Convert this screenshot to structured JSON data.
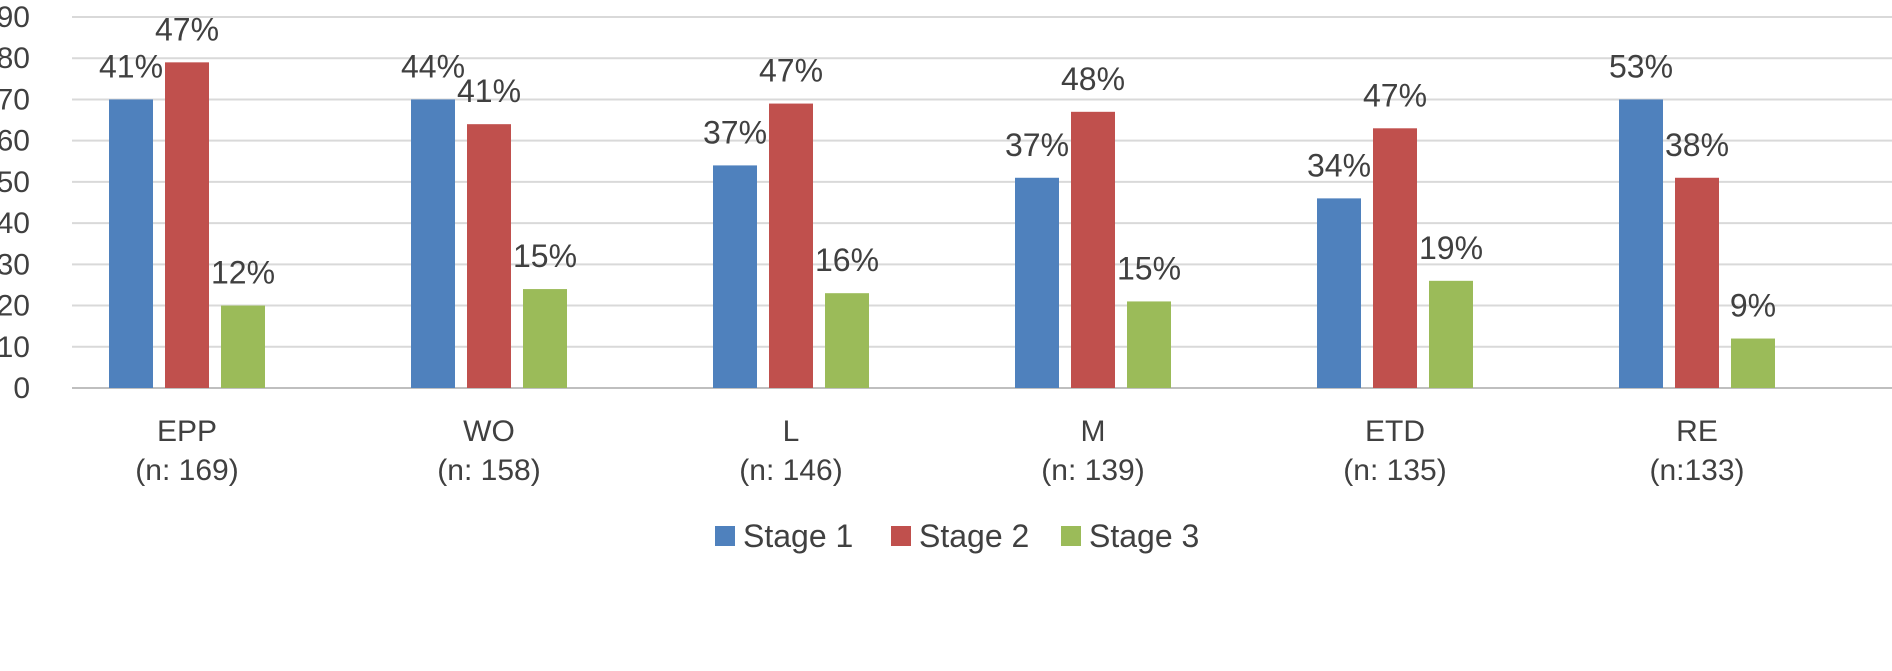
{
  "chart_data": {
    "type": "bar",
    "title": "",
    "xlabel": "",
    "ylabel": "",
    "ylim": [
      0,
      90
    ],
    "yticks": [
      0,
      10,
      20,
      30,
      40,
      50,
      60,
      70,
      80,
      90
    ],
    "grid": true,
    "legend_position": "bottom",
    "categories": [
      {
        "name": "EPP",
        "n": "(n: 169)"
      },
      {
        "name": "WO",
        "n": "(n: 158)"
      },
      {
        "name": "L",
        "n": "(n: 146)"
      },
      {
        "name": "M",
        "n": "(n: 139)"
      },
      {
        "name": "ETD",
        "n": "(n: 135)"
      },
      {
        "name": "RE",
        "n": "(n:133)"
      }
    ],
    "series": [
      {
        "name": "Stage 1",
        "color": "#4F81BD",
        "values": [
          70,
          70,
          54,
          51,
          46,
          70
        ],
        "labels": [
          "41%",
          "44%",
          "37%",
          "37%",
          "34%",
          "53%"
        ]
      },
      {
        "name": "Stage 2",
        "color": "#C0504D",
        "values": [
          79,
          64,
          69,
          67,
          63,
          51
        ],
        "labels": [
          "47%",
          "41%",
          "47%",
          "48%",
          "47%",
          "38%"
        ]
      },
      {
        "name": "Stage 3",
        "color": "#9BBB59",
        "values": [
          20,
          24,
          23,
          21,
          26,
          12
        ],
        "labels": [
          "12%",
          "15%",
          "16%",
          "15%",
          "19%",
          "9%"
        ]
      }
    ]
  }
}
